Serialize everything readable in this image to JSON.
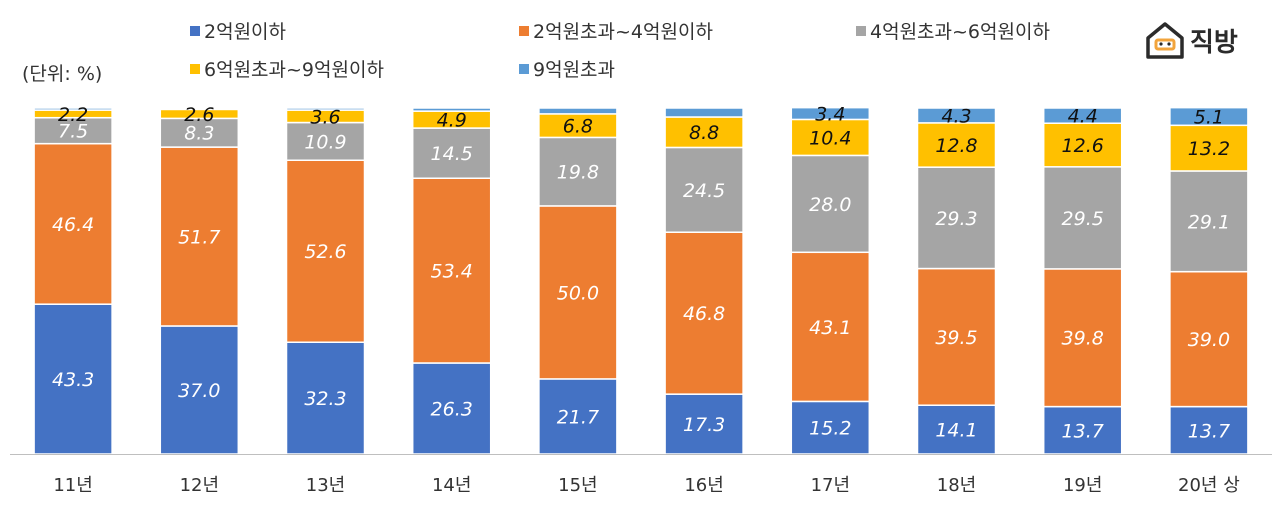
{
  "unit_label": "(단위: %)",
  "brand": {
    "name": "직방"
  },
  "colors": {
    "series1": "#4472C4",
    "series2": "#ED7D31",
    "series3": "#A5A5A5",
    "series4": "#FFC000",
    "series5": "#5B9BD5",
    "axis": "#bfbfbf",
    "logo_accent": "#f2a43c"
  },
  "chart_data": {
    "type": "bar",
    "stacked": true,
    "normalized_to": 100,
    "categories": [
      "11년",
      "12년",
      "13년",
      "14년",
      "15년",
      "16년",
      "17년",
      "18년",
      "19년",
      "20년 상"
    ],
    "ylim": [
      0,
      100
    ],
    "grid": false,
    "legend_position": "top",
    "series": [
      {
        "name": "2억원이하",
        "values": [
          43.3,
          37.0,
          32.3,
          26.3,
          21.7,
          17.3,
          15.2,
          14.1,
          13.7,
          13.7
        ]
      },
      {
        "name": "2억원초과~4억원이하",
        "values": [
          46.4,
          51.7,
          52.6,
          53.4,
          50.0,
          46.8,
          43.1,
          39.5,
          39.8,
          39.0
        ]
      },
      {
        "name": "4억원초과~6억원이하",
        "values": [
          7.5,
          8.3,
          10.9,
          14.5,
          19.8,
          24.5,
          28.0,
          29.3,
          29.5,
          29.1
        ]
      },
      {
        "name": "6억원초과~9억원이하",
        "values": [
          2.2,
          2.6,
          3.6,
          4.9,
          6.8,
          8.8,
          10.4,
          12.8,
          12.6,
          13.2
        ]
      },
      {
        "name": "9억원초과",
        "values": [
          0.6,
          0.4,
          0.6,
          0.9,
          1.7,
          2.6,
          3.4,
          4.3,
          4.4,
          5.1
        ]
      }
    ],
    "data_labels": [
      [
        "43.3",
        "37.0",
        "32.3",
        "26.3",
        "21.7",
        "17.3",
        "15.2",
        "14.1",
        "13.7",
        "13.7"
      ],
      [
        "46.4",
        "51.7",
        "52.6",
        "53.4",
        "50.0",
        "46.8",
        "43.1",
        "39.5",
        "39.8",
        "39.0"
      ],
      [
        "7.5",
        "8.3",
        "10.9",
        "14.5",
        "19.8",
        "24.5",
        "28.0",
        "29.3",
        "29.5",
        "29.1"
      ],
      [
        "2.2",
        "2.6",
        "3.6",
        "4.9",
        "6.8",
        "8.8",
        "10.4",
        "12.8",
        "12.6",
        "13.2"
      ],
      [
        "",
        "",
        "",
        "",
        "",
        "",
        "3.4",
        "4.3",
        "4.4",
        "5.1"
      ]
    ]
  }
}
